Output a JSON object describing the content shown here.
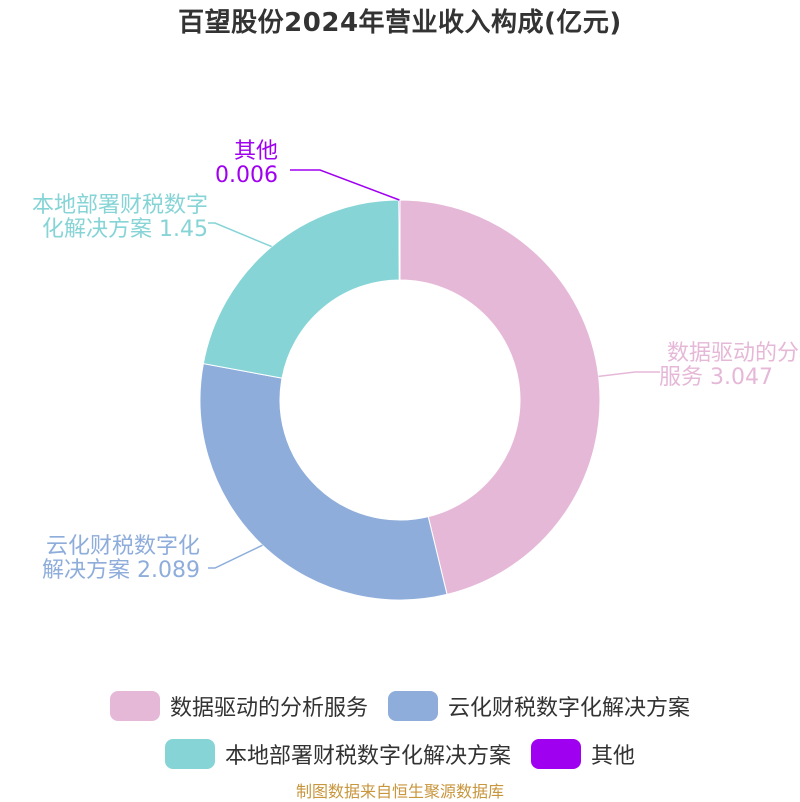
{
  "title": "百望股份2024年营业收入构成(亿元)",
  "source_note": "制图数据来自恒生聚源数据库",
  "chart_data": {
    "type": "pie",
    "title": "百望股份2024年营业收入构成(亿元)",
    "unit": "亿元",
    "donut": true,
    "legend_position": "bottom",
    "slices": [
      {
        "name": "数据驱动的分析服务",
        "value": 3.047,
        "color": "#e6b8d8",
        "label_lines": [
          "数据驱动的分析",
          "服务 3.047"
        ]
      },
      {
        "name": "云化财税数字化解决方案",
        "value": 2.089,
        "color": "#8eaddb",
        "label_lines": [
          "云化财税数字化",
          "解决方案 2.089"
        ]
      },
      {
        "name": "本地部署财税数字化解决方案",
        "value": 1.45,
        "color": "#86d4d6",
        "label_lines": [
          "本地部署财税数字",
          "化解决方案 1.45"
        ]
      },
      {
        "name": "其他",
        "value": 0.006,
        "color": "#a000f0",
        "label_lines": [
          "其他",
          "0.006"
        ]
      }
    ]
  }
}
